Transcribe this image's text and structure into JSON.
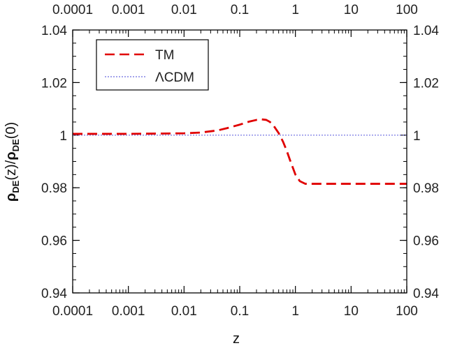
{
  "chart_data": {
    "type": "line",
    "xscale": "log",
    "xlim": [
      0.0001,
      100
    ],
    "ylim": [
      0.94,
      1.04
    ],
    "xlabel": "z",
    "ylabel": "ρDE(z)/ρDE(0)",
    "ylabel_parts": {
      "rho1": "ρ",
      "sub1": "DE",
      "mid": "(z)/",
      "rho2": "ρ",
      "sub2": "DE",
      "end": "(0)"
    },
    "x_ticks": [
      0.0001,
      0.001,
      0.01,
      0.1,
      1,
      10,
      100
    ],
    "x_tick_labels": [
      "0.0001",
      "0.001",
      "0.01",
      "0.1",
      "1",
      "10",
      "100"
    ],
    "y_ticks": [
      0.94,
      0.96,
      0.98,
      1,
      1.02,
      1.04
    ],
    "y_tick_labels": [
      "0.94",
      "0.96",
      "0.98",
      "1",
      "1.02",
      "1.04"
    ],
    "legend_position": "top-left",
    "grid": false,
    "series": [
      {
        "name": "TM",
        "color": "#e00000",
        "style": "dashed",
        "x": [
          0.0001,
          0.001,
          0.01,
          0.02,
          0.04,
          0.06,
          0.1,
          0.15,
          0.2,
          0.25,
          0.3,
          0.35,
          0.4,
          0.5,
          0.6,
          0.7,
          0.8,
          1.0,
          1.2,
          1.5,
          2,
          5,
          10,
          100
        ],
        "y": [
          1.0005,
          1.0005,
          1.0007,
          1.001,
          1.0018,
          1.0027,
          1.004,
          1.0052,
          1.0058,
          1.006,
          1.0058,
          1.005,
          1.0038,
          1.0008,
          0.9975,
          0.994,
          0.9905,
          0.985,
          0.9825,
          0.9815,
          0.9815,
          0.9815,
          0.9815,
          0.9815
        ]
      },
      {
        "name": "ΛCDM",
        "color": "#6a6adf",
        "style": "dotted",
        "x": [
          0.0001,
          100
        ],
        "y": [
          1,
          1
        ]
      }
    ]
  }
}
